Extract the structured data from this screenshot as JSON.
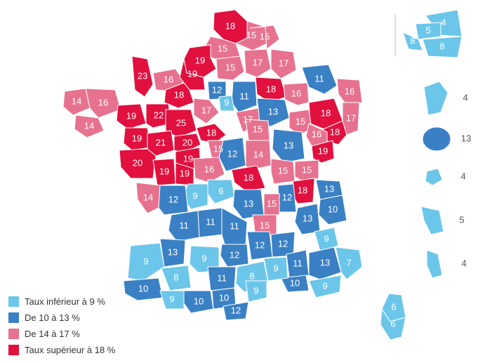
{
  "colors": {
    "light_blue": "#6cc6ea",
    "dark_blue": "#3a80c4",
    "pink": "#e7728f",
    "red": "#e1103e",
    "white": "#ffffff"
  },
  "legend": [
    {
      "label": "Taux inférieur à 9 %",
      "color": "light_blue"
    },
    {
      "label": "De 10 à 13 %",
      "color": "dark_blue"
    },
    {
      "label": "De 14 à 17 %",
      "color": "pink"
    },
    {
      "label": "Taux supérieur à 18 %",
      "color": "red"
    }
  ],
  "departments": [
    {
      "value": "18",
      "color": "red"
    },
    {
      "value": "15",
      "color": "pink"
    },
    {
      "value": "15",
      "color": "pink"
    },
    {
      "value": "19",
      "color": "red"
    },
    {
      "value": "15",
      "color": "pink"
    },
    {
      "value": "17",
      "color": "pink"
    },
    {
      "value": "17",
      "color": "pink"
    },
    {
      "value": "15",
      "color": "pink"
    },
    {
      "value": "23",
      "color": "red"
    },
    {
      "value": "16",
      "color": "pink"
    },
    {
      "value": "19",
      "color": "red"
    },
    {
      "value": "18",
      "color": "red"
    },
    {
      "value": "11",
      "color": "dark_blue"
    },
    {
      "value": "16",
      "color": "pink"
    },
    {
      "value": "14",
      "color": "pink"
    },
    {
      "value": "16",
      "color": "pink"
    },
    {
      "value": "18",
      "color": "red"
    },
    {
      "value": "12",
      "color": "dark_blue"
    },
    {
      "value": "11",
      "color": "dark_blue"
    },
    {
      "value": "9",
      "color": "light_blue"
    },
    {
      "value": "18",
      "color": "red"
    },
    {
      "value": "16",
      "color": "pink"
    },
    {
      "value": "17",
      "color": "pink"
    },
    {
      "value": "14",
      "color": "pink"
    },
    {
      "value": "19",
      "color": "red"
    },
    {
      "value": "22",
      "color": "red"
    },
    {
      "value": "17",
      "color": "pink"
    },
    {
      "value": "13",
      "color": "dark_blue"
    },
    {
      "value": "18",
      "color": "red"
    },
    {
      "value": "17",
      "color": "pink"
    },
    {
      "value": "25",
      "color": "red"
    },
    {
      "value": "15",
      "color": "pink"
    },
    {
      "value": "15",
      "color": "pink"
    },
    {
      "value": "16",
      "color": "pink"
    },
    {
      "value": "19",
      "color": "red"
    },
    {
      "value": "18",
      "color": "red"
    },
    {
      "value": "21",
      "color": "red"
    },
    {
      "value": "20",
      "color": "red"
    },
    {
      "value": "15",
      "color": "pink"
    },
    {
      "value": "13",
      "color": "dark_blue"
    },
    {
      "value": "19",
      "color": "red"
    },
    {
      "value": "19",
      "color": "red"
    },
    {
      "value": "12",
      "color": "dark_blue"
    },
    {
      "value": "14",
      "color": "pink"
    },
    {
      "value": "15",
      "color": "pink"
    },
    {
      "value": "20",
      "color": "red"
    },
    {
      "value": "19",
      "color": "red"
    },
    {
      "value": "19",
      "color": "red"
    },
    {
      "value": "16",
      "color": "pink"
    },
    {
      "value": "18",
      "color": "red"
    },
    {
      "value": "15",
      "color": "pink"
    },
    {
      "value": "14",
      "color": "pink"
    },
    {
      "value": "9",
      "color": "light_blue"
    },
    {
      "value": "6",
      "color": "light_blue"
    },
    {
      "value": "12",
      "color": "dark_blue"
    },
    {
      "value": "18",
      "color": "red"
    },
    {
      "value": "13",
      "color": "dark_blue"
    },
    {
      "value": "10",
      "color": "dark_blue"
    },
    {
      "value": "12",
      "color": "dark_blue"
    },
    {
      "value": "13",
      "color": "dark_blue"
    },
    {
      "value": "15",
      "color": "pink"
    },
    {
      "value": "11",
      "color": "dark_blue"
    },
    {
      "value": "15",
      "color": "pink"
    },
    {
      "value": "11",
      "color": "dark_blue"
    },
    {
      "value": "13",
      "color": "dark_blue"
    },
    {
      "value": "12",
      "color": "dark_blue"
    },
    {
      "value": "11",
      "color": "dark_blue"
    },
    {
      "value": "9",
      "color": "light_blue"
    },
    {
      "value": "13",
      "color": "dark_blue"
    },
    {
      "value": "12",
      "color": "dark_blue"
    },
    {
      "value": "12",
      "color": "dark_blue"
    },
    {
      "value": "9",
      "color": "light_blue"
    },
    {
      "value": "9",
      "color": "light_blue"
    },
    {
      "value": "8",
      "color": "light_blue"
    },
    {
      "value": "11",
      "color": "dark_blue"
    },
    {
      "value": "11",
      "color": "dark_blue"
    },
    {
      "value": "13",
      "color": "dark_blue"
    },
    {
      "value": "7",
      "color": "light_blue"
    },
    {
      "value": "10",
      "color": "dark_blue"
    },
    {
      "value": "9",
      "color": "light_blue"
    },
    {
      "value": "10",
      "color": "dark_blue"
    },
    {
      "value": "8",
      "color": "light_blue"
    },
    {
      "value": "10",
      "color": "dark_blue"
    },
    {
      "value": "9",
      "color": "light_blue"
    },
    {
      "value": "9",
      "color": "light_blue"
    },
    {
      "value": "10",
      "color": "dark_blue"
    },
    {
      "value": "12",
      "color": "dark_blue"
    },
    {
      "value": "9",
      "color": "light_blue"
    },
    {
      "value": "6",
      "color": "light_blue"
    },
    {
      "value": "6",
      "color": "light_blue"
    }
  ],
  "paris_inset": [
    {
      "value": "4",
      "color": "light_blue"
    },
    {
      "value": "5",
      "color": "light_blue"
    },
    {
      "value": "8",
      "color": "light_blue"
    },
    {
      "value": "8",
      "color": "light_blue"
    }
  ],
  "overseas": [
    {
      "value": "4",
      "color": "light_blue"
    },
    {
      "value": "13",
      "color": "dark_blue"
    },
    {
      "value": "4",
      "color": "light_blue"
    },
    {
      "value": "5",
      "color": "light_blue"
    },
    {
      "value": "4",
      "color": "light_blue"
    }
  ]
}
